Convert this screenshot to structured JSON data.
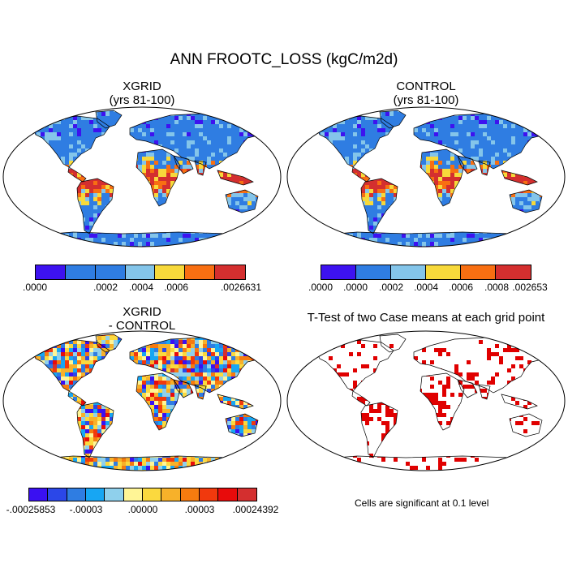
{
  "title": "ANN FROOTC_LOSS (kgC/m2d)",
  "panels": [
    {
      "id": "xgrid",
      "title_lines": [
        "XGRID",
        "(yrs 81-100)"
      ]
    },
    {
      "id": "control",
      "title_lines": [
        "CONTROL",
        "(yrs 81-100)"
      ]
    },
    {
      "id": "diff",
      "title_lines": [
        "XGRID",
        "- CONTROL"
      ]
    },
    {
      "id": "ttest",
      "title_lines": [
        "T-Test of two Case means at each grid point"
      ]
    }
  ],
  "colorbars": {
    "xgrid": {
      "colors": [
        "#3d12f0",
        "#2f7de2",
        "#2f7de2",
        "#84c5ea",
        "#f7d93b",
        "#f86f12",
        "#d42f2f"
      ],
      "labels": [
        ".0000",
        ".0002",
        ".0004",
        ".0006",
        ".0026631"
      ]
    },
    "control": {
      "colors": [
        "#3d12f0",
        "#2f7de2",
        "#84c5ea",
        "#f7d93b",
        "#f86f12",
        "#d42f2f"
      ],
      "labels": [
        ".0000",
        ".0000",
        ".0002",
        ".0004",
        ".0006",
        ".0008",
        ".002653"
      ]
    },
    "diff": {
      "colors": [
        "#3a10f2",
        "#2b47e8",
        "#2f7de2",
        "#17a6f3",
        "#8fd0ec",
        "#fff596",
        "#fbd93e",
        "#f7b12a",
        "#f67b0f",
        "#f1390d",
        "#e80b0b",
        "#d42f2f"
      ],
      "labels": [
        "-.00025853",
        "-.00003",
        ".00000",
        ".00003",
        ".00024392"
      ]
    }
  },
  "significance_note": "Cells are significant at 0.1 level",
  "colors": {
    "ocean": "#ffffff",
    "land_base_abs": "#2f7de2",
    "land_base_diff": "#fff596",
    "significant": "#e00000",
    "coast": "#000000"
  }
}
